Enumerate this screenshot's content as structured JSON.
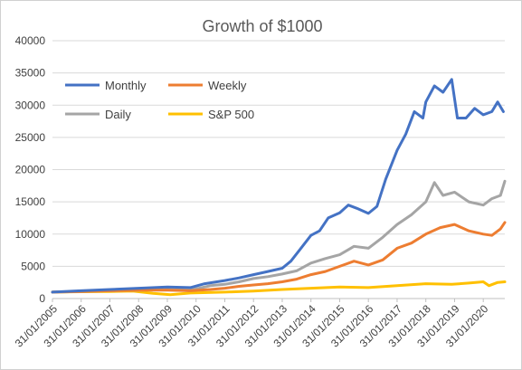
{
  "chart_data": {
    "type": "line",
    "title": "Growth of $1000",
    "xlabel": "",
    "ylabel": "",
    "ylim": [
      0,
      40000
    ],
    "yticks": [
      0,
      5000,
      10000,
      15000,
      20000,
      25000,
      30000,
      35000,
      40000
    ],
    "xticks": [
      "31/01/2005",
      "31/01/2006",
      "31/01/2007",
      "31/01/2008",
      "31/01/2009",
      "31/01/2010",
      "31/01/2011",
      "31/01/2012",
      "31/01/2013",
      "31/01/2014",
      "31/01/2015",
      "31/01/2016",
      "31/01/2017",
      "31/01/2018",
      "31/01/2019",
      "31/01/2020"
    ],
    "xlim": [
      2005.0,
      2020.75
    ],
    "grid": true,
    "legend_placement": "top-left",
    "series": [
      {
        "name": "Monthly",
        "color": "#4472c4",
        "x": [
          2005.0,
          2006.0,
          2007.0,
          2008.0,
          2009.0,
          2009.8,
          2010.3,
          2011.0,
          2011.5,
          2012.0,
          2012.5,
          2013.0,
          2013.3,
          2013.6,
          2014.0,
          2014.3,
          2014.6,
          2015.0,
          2015.3,
          2015.6,
          2016.0,
          2016.3,
          2016.6,
          2017.0,
          2017.3,
          2017.6,
          2017.9,
          2018.0,
          2018.3,
          2018.6,
          2018.9,
          2019.1,
          2019.4,
          2019.7,
          2020.0,
          2020.3,
          2020.5,
          2020.7
        ],
        "values": [
          1000,
          1200,
          1400,
          1600,
          1800,
          1700,
          2300,
          2800,
          3200,
          3700,
          4200,
          4700,
          5800,
          7500,
          9800,
          10500,
          12500,
          13300,
          14500,
          14000,
          13200,
          14300,
          18500,
          23000,
          25500,
          29000,
          28000,
          30500,
          33000,
          32000,
          34000,
          28000,
          28000,
          29500,
          28500,
          29000,
          30500,
          29000
        ]
      },
      {
        "name": "Weekly",
        "color": "#ed7d31",
        "x": [
          2005.0,
          2006.0,
          2007.0,
          2008.0,
          2009.0,
          2009.8,
          2010.5,
          2011.0,
          2011.5,
          2012.0,
          2012.5,
          2013.0,
          2013.5,
          2014.0,
          2014.5,
          2015.0,
          2015.5,
          2016.0,
          2016.5,
          2017.0,
          2017.5,
          2018.0,
          2018.5,
          2019.0,
          2019.5,
          2020.0,
          2020.3,
          2020.6,
          2020.75
        ],
        "values": [
          1000,
          1100,
          1200,
          1300,
          1300,
          1200,
          1400,
          1600,
          1900,
          2100,
          2300,
          2600,
          3000,
          3700,
          4200,
          5000,
          5800,
          5200,
          6000,
          7800,
          8600,
          10000,
          11000,
          11500,
          10500,
          10000,
          9800,
          10800,
          11800
        ]
      },
      {
        "name": "Daily",
        "color": "#a5a5a5",
        "x": [
          2005.0,
          2006.0,
          2007.0,
          2008.0,
          2009.0,
          2009.8,
          2010.5,
          2011.0,
          2011.5,
          2012.0,
          2012.5,
          2013.0,
          2013.5,
          2014.0,
          2014.5,
          2015.0,
          2015.5,
          2016.0,
          2016.5,
          2017.0,
          2017.5,
          2018.0,
          2018.3,
          2018.6,
          2019.0,
          2019.5,
          2020.0,
          2020.3,
          2020.6,
          2020.75
        ],
        "values": [
          1000,
          1100,
          1200,
          1300,
          1400,
          1300,
          2000,
          2200,
          2600,
          3100,
          3400,
          3800,
          4300,
          5500,
          6200,
          6800,
          8100,
          7800,
          9500,
          11500,
          13000,
          15000,
          18000,
          16000,
          16500,
          15000,
          14500,
          15500,
          16000,
          18200
        ]
      },
      {
        "name": "S&P 500",
        "color": "#ffc000",
        "x": [
          2005.0,
          2006.0,
          2007.0,
          2007.8,
          2008.5,
          2009.1,
          2009.8,
          2011.0,
          2012.0,
          2013.0,
          2014.0,
          2015.0,
          2016.0,
          2017.0,
          2018.0,
          2018.9,
          2019.5,
          2020.0,
          2020.2,
          2020.5,
          2020.75
        ],
        "values": [
          1000,
          1050,
          1100,
          1150,
          800,
          600,
          850,
          1000,
          1150,
          1400,
          1600,
          1800,
          1700,
          2000,
          2300,
          2200,
          2400,
          2600,
          2000,
          2500,
          2600
        ]
      }
    ]
  }
}
